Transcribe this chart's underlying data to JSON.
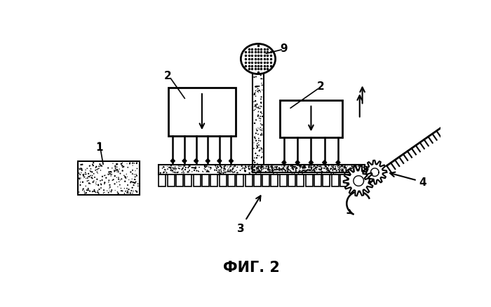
{
  "title": "ФИГ. 2",
  "background_color": "#ffffff",
  "label_1": "1",
  "label_2": "2",
  "label_3": "3",
  "label_4": "4",
  "label_9": "9"
}
